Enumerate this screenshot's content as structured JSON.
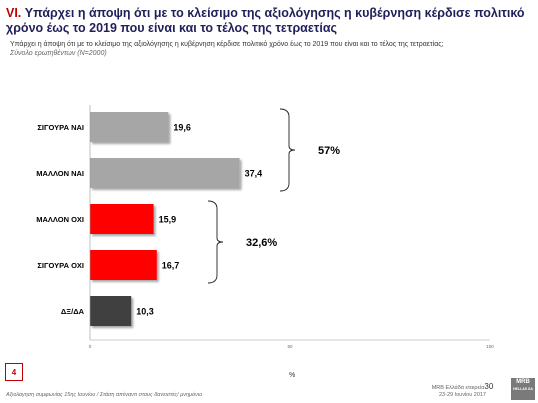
{
  "header": {
    "number": "VI.",
    "title": "Υπάρχει η άποψη ότι με το κλείσιμο της αξιολόγησης η κυβέρνηση κέρδισε πολιτικό χρόνο έως το 2019 που είναι και το τέλος της τετραετίας",
    "subtitle": "Υπάρχει η άποψη ότι με το κλείσιμο της αξιολόγησης η κυβέρνηση κέρδισε πολιτικό χρόνο έως το 2019 που είναι και το τέλος της τετραετίας;",
    "base": "Σύνολο ερωτηθέντων (N=2000)"
  },
  "chart_data": {
    "type": "bar",
    "orientation": "horizontal",
    "categories": [
      "ΣΙΓΟΥΡΑ ΝΑΙ",
      "ΜΑΛΛΟΝ ΝΑΙ",
      "ΜΑΛΛΟΝ ΟΧΙ",
      "ΣΙΓΟΥΡΑ ΟΧΙ",
      "ΔΞ/ΔΑ"
    ],
    "values": [
      19.6,
      37.4,
      15.9,
      16.7,
      10.3
    ],
    "value_labels": [
      "19,6",
      "37,4",
      "15,9",
      "16,7",
      "10,3"
    ],
    "colors": [
      "#a6a6a6",
      "#a6a6a6",
      "#ff0000",
      "#ff0000",
      "#404040"
    ],
    "xlim": [
      0,
      100
    ],
    "xticks": [
      0,
      50,
      100
    ],
    "xtick_labels": [
      "0",
      "50",
      "100"
    ],
    "xlabel": "%",
    "groups": [
      {
        "categories": [
          "ΣΙΓΟΥΡΑ ΝΑΙ",
          "ΜΑΛΛΟΝ ΝΑΙ"
        ],
        "label": "57%"
      },
      {
        "categories": [
          "ΜΑΛΛΟΝ ΟΧΙ",
          "ΣΙΓΟΥΡΑ ΟΧΙ"
        ],
        "label": "32,6%"
      }
    ],
    "grid": false
  },
  "footer": {
    "page_box": "4",
    "left_note": "Αξιολόγηση συμφωνίας 15ης Ιουνίου / Στάση απέναντι στους δανειστές/ μνημόνιο",
    "company": "MRB Ελλάδα εταιρεία",
    "page": "30",
    "dates": "23-29 Ιουνίου 2017",
    "logo_text": "MRB",
    "logo_sub": "HELLAS SA"
  }
}
